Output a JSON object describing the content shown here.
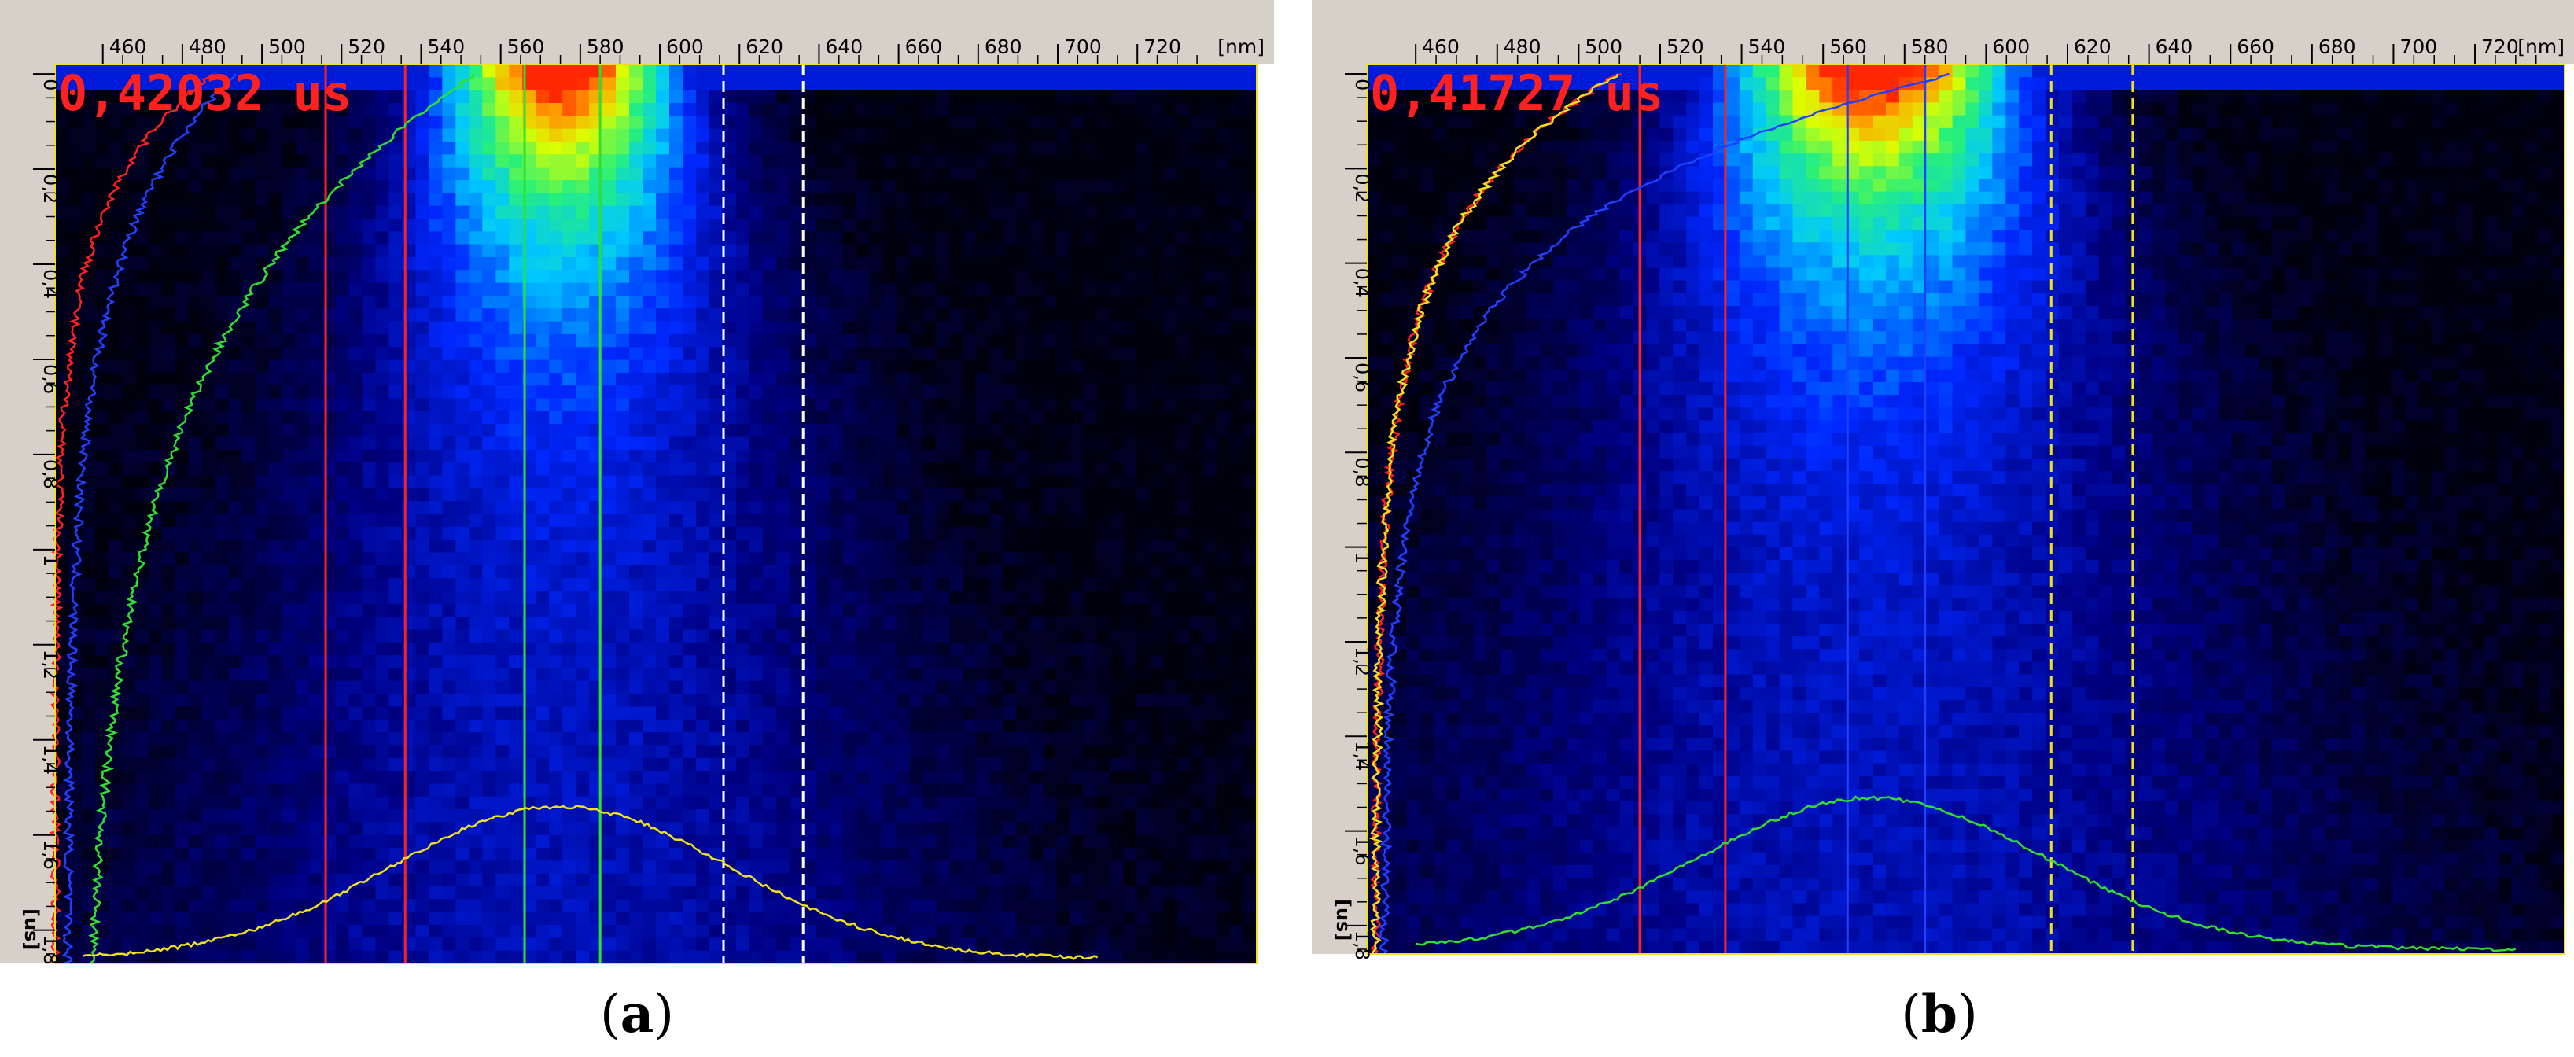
{
  "chart_data": [
    {
      "type": "heatmap",
      "panel_label": "a",
      "timestamp": "0,42032 us",
      "x_unit": "[nm]",
      "y_unit": "[us]",
      "xlim": [
        448,
        750
      ],
      "ylim": [
        -0.02,
        1.87
      ],
      "x_ticks": [
        "460",
        "480",
        "500",
        "520",
        "540",
        "560",
        "580",
        "600",
        "620",
        "640",
        "660",
        "680",
        "700",
        "720"
      ],
      "y_ticks": [
        "0",
        "0,2",
        "0,4",
        "0,6",
        "0,8",
        "1",
        "1,2",
        "1,4",
        "1,6",
        "1,8"
      ],
      "emission_center_nm": 575,
      "emission_width_nm": 30,
      "marker_lines": [
        {
          "x": 516,
          "color": "#ff2020",
          "dashed": false
        },
        {
          "x": 536,
          "color": "#ff2020",
          "dashed": false
        },
        {
          "x": 566,
          "color": "#30e030",
          "dashed": false
        },
        {
          "x": 585,
          "color": "#30e030",
          "dashed": false
        },
        {
          "x": 616,
          "color": "#ffffff",
          "dashed": true
        },
        {
          "x": 636,
          "color": "#ffffff",
          "dashed": true
        }
      ],
      "decay_curves": [
        {
          "color": "#ff2020",
          "tau": 0.25,
          "x0": 448,
          "a": 40
        },
        {
          "color": "#2040ff",
          "tau": 0.35,
          "x0": 451,
          "a": 42
        },
        {
          "color": "#30e030",
          "tau": 0.55,
          "x0": 454,
          "a": 100
        }
      ],
      "spectrum_color": "#f0e020",
      "spectrum_range": [
        455,
        710
      ],
      "spectrum_peak_us": 1.54
    },
    {
      "type": "heatmap",
      "panel_label": "b",
      "timestamp": "0,41727 us",
      "x_unit": "[nm]",
      "y_unit": "[us]",
      "xlim": [
        448,
        742
      ],
      "ylim": [
        -0.02,
        1.86
      ],
      "x_ticks": [
        "460",
        "480",
        "500",
        "520",
        "540",
        "560",
        "580",
        "600",
        "620",
        "640",
        "660",
        "680",
        "700",
        "720"
      ],
      "y_ticks": [
        "0",
        "0,2",
        "0,4",
        "0,6",
        "0,8",
        "1",
        "1,2",
        "1,4",
        "1,6",
        "1,8"
      ],
      "emission_center_nm": 572,
      "emission_width_nm": 36,
      "marker_lines": [
        {
          "x": 515,
          "color": "#ff2020",
          "dashed": false
        },
        {
          "x": 536,
          "color": "#ff2020",
          "dashed": false
        },
        {
          "x": 566,
          "color": "#2040ff",
          "dashed": false
        },
        {
          "x": 585,
          "color": "#2040ff",
          "dashed": false
        },
        {
          "x": 616,
          "color": "#f0e020",
          "dashed": true
        },
        {
          "x": 636,
          "color": "#f0e020",
          "dashed": true
        }
      ],
      "decay_curves": [
        {
          "color": "#ff2020",
          "tau": 0.3,
          "x0": 450,
          "a": 60
        },
        {
          "color": "#f0e020",
          "tau": 0.3,
          "x0": 450,
          "a": 60
        },
        {
          "color": "#2040ff",
          "tau": 0.3,
          "x0": 452,
          "a": 140
        }
      ],
      "spectrum_color": "#30e030",
      "spectrum_range": [
        460,
        730
      ],
      "spectrum_peak_us": 1.53
    }
  ]
}
